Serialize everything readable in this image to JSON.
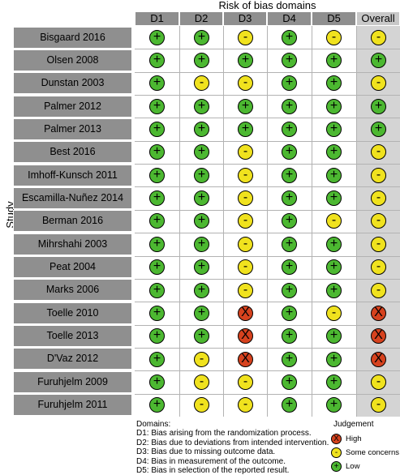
{
  "header": {
    "title": "Risk of bias domains",
    "y_label": "Study",
    "columns": [
      "D1",
      "D2",
      "D3",
      "D4",
      "D5",
      "Overall"
    ]
  },
  "judgement_styles": {
    "low": {
      "symbol": "+",
      "color": "#4cb831"
    },
    "some": {
      "symbol": "-",
      "color": "#f0e21e"
    },
    "high": {
      "symbol": "X",
      "color": "#d6421e"
    }
  },
  "studies": [
    {
      "name": "Bisgaard 2016",
      "judgements": [
        "low",
        "low",
        "some",
        "low",
        "some",
        "some"
      ]
    },
    {
      "name": "Olsen 2008",
      "judgements": [
        "low",
        "low",
        "low",
        "low",
        "low",
        "low"
      ]
    },
    {
      "name": "Dunstan 2003",
      "judgements": [
        "low",
        "some",
        "some",
        "low",
        "low",
        "some"
      ]
    },
    {
      "name": "Palmer 2012",
      "judgements": [
        "low",
        "low",
        "low",
        "low",
        "low",
        "low"
      ]
    },
    {
      "name": "Palmer 2013",
      "judgements": [
        "low",
        "low",
        "low",
        "low",
        "low",
        "low"
      ]
    },
    {
      "name": "Best 2016",
      "judgements": [
        "low",
        "low",
        "some",
        "low",
        "low",
        "some"
      ]
    },
    {
      "name": "Imhoff-Kunsch 2011",
      "judgements": [
        "low",
        "low",
        "some",
        "low",
        "low",
        "some"
      ]
    },
    {
      "name": "Escamilla-Nuñez 2014",
      "judgements": [
        "low",
        "low",
        "some",
        "low",
        "low",
        "some"
      ]
    },
    {
      "name": "Berman 2016",
      "judgements": [
        "low",
        "low",
        "some",
        "low",
        "some",
        "some"
      ]
    },
    {
      "name": "Mihrshahi 2003",
      "judgements": [
        "low",
        "low",
        "some",
        "low",
        "low",
        "some"
      ]
    },
    {
      "name": "Peat 2004",
      "judgements": [
        "low",
        "low",
        "some",
        "low",
        "low",
        "some"
      ]
    },
    {
      "name": "Marks 2006",
      "judgements": [
        "low",
        "low",
        "some",
        "low",
        "low",
        "some"
      ]
    },
    {
      "name": "Toelle 2010",
      "judgements": [
        "low",
        "low",
        "high",
        "low",
        "some",
        "high"
      ]
    },
    {
      "name": "Toelle 2013",
      "judgements": [
        "low",
        "low",
        "high",
        "low",
        "low",
        "high"
      ]
    },
    {
      "name": "D'Vaz 2012",
      "judgements": [
        "low",
        "some",
        "high",
        "low",
        "low",
        "high"
      ]
    },
    {
      "name": "Furuhjelm 2009",
      "judgements": [
        "low",
        "some",
        "some",
        "low",
        "low",
        "some"
      ]
    },
    {
      "name": "Furuhjelm 2011",
      "judgements": [
        "low",
        "some",
        "some",
        "low",
        "low",
        "some"
      ]
    }
  ],
  "legend": {
    "domains_title": "Domains:",
    "domains": [
      "D1: Bias arising from the randomization process.",
      "D2: Bias due to deviations from intended intervention.",
      "D3: Bias due to missing outcome data.",
      "D4: Bias in measurement of the outcome.",
      "D5: Bias in selection of the reported result."
    ],
    "judgement_title": "Judgement",
    "judgements": [
      {
        "key": "high",
        "label": "High"
      },
      {
        "key": "some",
        "label": "Some concerns"
      },
      {
        "key": "low",
        "label": "Low"
      }
    ]
  }
}
